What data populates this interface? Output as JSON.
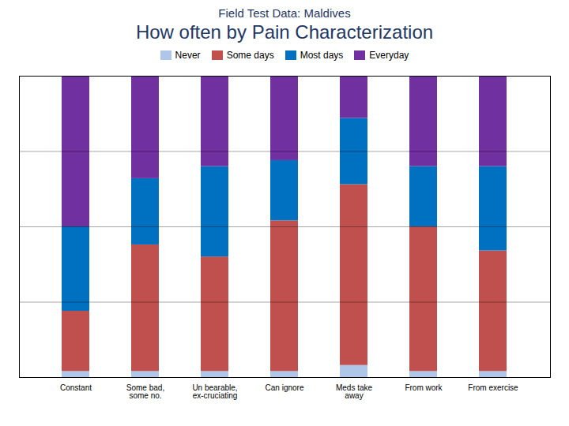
{
  "chart_data": {
    "type": "bar",
    "title": "Field Test Data: Maldives",
    "subtitle": "How often by Pain Characterization",
    "categories": [
      "Constant",
      "Some bad,\nsome no.",
      "Un bearable,\nex-cruciating",
      "Can ignore",
      "Meds take\naway",
      "From work",
      "From exercise"
    ],
    "series": [
      {
        "name": "Never",
        "color": "#aec6e8",
        "values": [
          0.02,
          0.02,
          0.02,
          0.02,
          0.04,
          0.02,
          0.02
        ]
      },
      {
        "name": "Some days",
        "color": "#c0504d",
        "values": [
          0.2,
          0.42,
          0.38,
          0.5,
          0.6,
          0.48,
          0.4
        ]
      },
      {
        "name": "Most days",
        "color": "#0070c0",
        "values": [
          0.28,
          0.22,
          0.3,
          0.2,
          0.22,
          0.2,
          0.28
        ]
      },
      {
        "name": "Everyday",
        "color": "#7030a0",
        "values": [
          0.5,
          0.34,
          0.3,
          0.28,
          0.14,
          0.3,
          0.3
        ]
      }
    ],
    "stacked": true,
    "ylim": [
      0,
      1.0
    ],
    "yticks": [
      0.25,
      0.5,
      0.75
    ],
    "grid": true,
    "tick_labels": "x",
    "legend": "top"
  }
}
